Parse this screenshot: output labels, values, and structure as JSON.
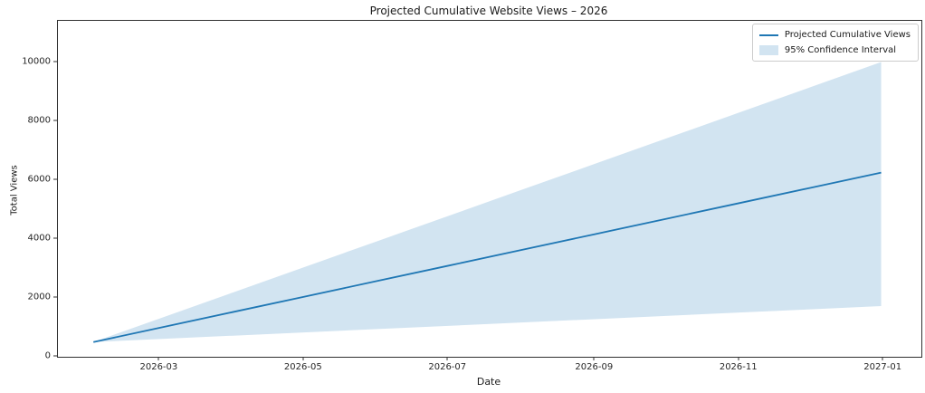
{
  "chart_data": {
    "type": "line",
    "title": "Projected Cumulative Website Views – 2026",
    "xlabel": "Date",
    "ylabel": "Total Views",
    "grid": false,
    "legend_position": "upper right",
    "x_dates": [
      "2026-02-01",
      "2026-03-01",
      "2026-04-01",
      "2026-05-01",
      "2026-06-01",
      "2026-07-01",
      "2026-08-01",
      "2026-09-01",
      "2026-10-01",
      "2026-11-01",
      "2026-12-01",
      "2026-12-31"
    ],
    "series": [
      {
        "name": "Projected Cumulative Views",
        "color": "#1f77b4",
        "values": [
          500,
          983,
          1519,
          2037,
          2572,
          3090,
          3625,
          4161,
          4679,
          5214,
          5732,
          6250
        ]
      }
    ],
    "band": {
      "name": "95% Confidence Interval",
      "color": "#d2e4f1",
      "lower": [
        500,
        603,
        716,
        826,
        940,
        1050,
        1163,
        1277,
        1387,
        1500,
        1610,
        1720
      ],
      "upper": [
        500,
        1299,
        2183,
        3039,
        3923,
        4779,
        5664,
        6548,
        7404,
        8288,
        9144,
        10000
      ]
    },
    "xlim": [
      "2026-01-17",
      "2027-01-17"
    ],
    "ylim": [
      0,
      11400
    ],
    "yticks": [
      0,
      2000,
      4000,
      6000,
      8000,
      10000
    ],
    "xticks": [
      {
        "date": "2026-03-01",
        "label": "2026-03"
      },
      {
        "date": "2026-05-01",
        "label": "2026-05"
      },
      {
        "date": "2026-07-01",
        "label": "2026-07"
      },
      {
        "date": "2026-09-01",
        "label": "2026-09"
      },
      {
        "date": "2026-11-01",
        "label": "2026-11"
      },
      {
        "date": "2027-01-01",
        "label": "2027-01"
      }
    ]
  }
}
